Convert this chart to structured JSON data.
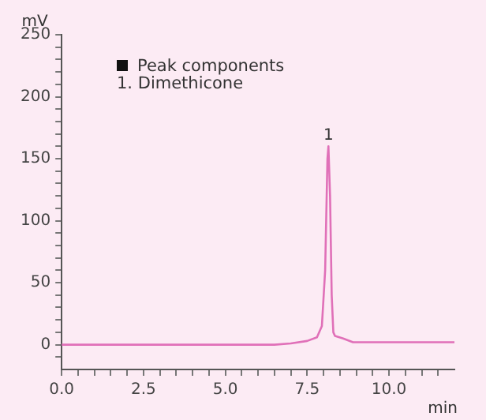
{
  "chart_data": {
    "type": "line",
    "xlabel": "min",
    "ylabel": "mV",
    "annotations": [
      "Peak components",
      "1. Dimethicone",
      {
        "text": "1",
        "x": 8.15,
        "y": 160
      }
    ],
    "series": [
      {
        "color": "#e070b8",
        "x": [
          0,
          3,
          6,
          6.5,
          7,
          7.5,
          7.8,
          7.95,
          8.05,
          8.12,
          8.15,
          8.2,
          8.25,
          8.3,
          8.35,
          8.6,
          8.9,
          9.3,
          12
        ],
        "values": [
          0,
          0,
          0,
          0,
          1,
          3,
          6,
          15,
          60,
          150,
          160,
          120,
          40,
          10,
          7,
          5,
          2,
          2,
          2
        ]
      }
    ],
    "xlim": [
      0,
      12
    ],
    "xticks": [
      {
        "value": 0,
        "label": "0.0"
      },
      {
        "value": 0.5,
        "label": null
      },
      {
        "value": 1,
        "label": null
      },
      {
        "value": 1.5,
        "label": null
      },
      {
        "value": 2,
        "label": null
      },
      2.5,
      {
        "value": 3,
        "label": null
      },
      {
        "value": 3.5,
        "label": null
      },
      {
        "value": 4,
        "label": null
      },
      {
        "value": 4.5,
        "label": null
      },
      {
        "value": 5,
        "label": "5.0"
      },
      {
        "value": 5.5,
        "label": null
      },
      {
        "value": 6,
        "label": null
      },
      {
        "value": 6.5,
        "label": null
      },
      {
        "value": 7,
        "label": null
      },
      7.5,
      {
        "value": 8,
        "label": null
      },
      {
        "value": 8.5,
        "label": null
      },
      {
        "value": 9,
        "label": null
      },
      {
        "value": 9.5,
        "label": null
      },
      {
        "value": 10,
        "label": "10.0"
      },
      {
        "value": 10.5,
        "label": null
      },
      {
        "value": 11,
        "label": null
      },
      {
        "value": 11.5,
        "label": null
      }
    ],
    "ylim": [
      -20,
      250
    ],
    "yticks": [
      {
        "value": -10,
        "label": null
      },
      0,
      {
        "value": 10,
        "label": null
      },
      {
        "value": 20,
        "label": null
      },
      {
        "value": 30,
        "label": null
      },
      {
        "value": 40,
        "label": null
      },
      50,
      {
        "value": 60,
        "label": null
      },
      {
        "value": 70,
        "label": null
      },
      {
        "value": 80,
        "label": null
      },
      {
        "value": 90,
        "label": null
      },
      100,
      {
        "value": 110,
        "label": null
      },
      {
        "value": 120,
        "label": null
      },
      {
        "value": 130,
        "label": null
      },
      {
        "value": 140,
        "label": null
      },
      150,
      {
        "value": 160,
        "label": null
      },
      {
        "value": 170,
        "label": null
      },
      {
        "value": 180,
        "label": null
      },
      {
        "value": 190,
        "label": null
      },
      200,
      {
        "value": 210,
        "label": null
      },
      {
        "value": 220,
        "label": null
      },
      {
        "value": 230,
        "label": null
      },
      {
        "value": 240,
        "label": null
      },
      250
    ],
    "grid": false,
    "legend": false,
    "marker": "none",
    "line_style": "solid"
  }
}
